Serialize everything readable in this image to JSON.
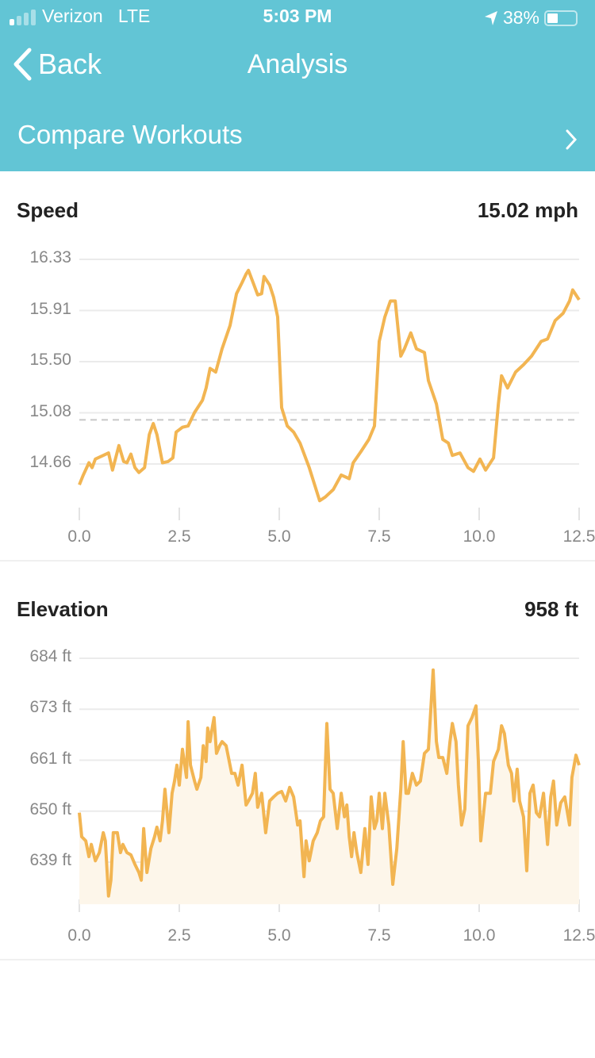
{
  "status_bar": {
    "carrier": "Verizon",
    "network": "LTE",
    "time": "5:03 PM",
    "battery": "38%",
    "battery_level": 0.38,
    "signal_bars": 1
  },
  "nav": {
    "back_label": "Back",
    "title": "Analysis"
  },
  "compare": {
    "label": "Compare Workouts"
  },
  "colors": {
    "header": "#62c5d5",
    "line": "#f2b552",
    "fill": "#fdf6ea"
  },
  "chart_data": [
    {
      "type": "line",
      "title": "Speed",
      "value": "15.02 mph",
      "average": 15.02,
      "yticks": [
        "16.33",
        "15.91",
        "15.50",
        "15.08",
        "14.66"
      ],
      "xticks": [
        "0.0",
        "2.5",
        "5.0",
        "7.5",
        "10.0",
        "12.5"
      ],
      "xlim": [
        0,
        12.5
      ],
      "ylim": [
        14.3,
        16.33
      ],
      "x": [
        0,
        0.1,
        0.24,
        0.32,
        0.4,
        0.6,
        0.73,
        0.83,
        0.99,
        1.11,
        1.19,
        1.29,
        1.39,
        1.49,
        1.63,
        1.75,
        1.85,
        1.94,
        2.08,
        2.22,
        2.34,
        2.42,
        2.58,
        2.72,
        2.88,
        3.08,
        3.17,
        3.27,
        3.41,
        3.57,
        3.77,
        3.93,
        4.07,
        4.17,
        4.23,
        4.37,
        4.46,
        4.56,
        4.62,
        4.76,
        4.86,
        4.96,
        5.06,
        5.2,
        5.36,
        5.52,
        5.75,
        6.01,
        6.15,
        6.35,
        6.55,
        6.75,
        6.85,
        7.04,
        7.24,
        7.38,
        7.5,
        7.64,
        7.78,
        7.9,
        8.04,
        8.13,
        8.29,
        8.43,
        8.63,
        8.73,
        8.93,
        9.09,
        9.23,
        9.33,
        9.52,
        9.72,
        9.86,
        10.02,
        10.16,
        10.36,
        10.48,
        10.56,
        10.71,
        10.91,
        11.11,
        11.31,
        11.55,
        11.71,
        11.9,
        12.1,
        12.26,
        12.34,
        12.5
      ],
      "y": [
        14.49,
        14.57,
        14.67,
        14.63,
        14.7,
        14.73,
        14.75,
        14.61,
        14.81,
        14.68,
        14.67,
        14.74,
        14.63,
        14.59,
        14.63,
        14.9,
        14.99,
        14.9,
        14.67,
        14.68,
        14.71,
        14.92,
        14.96,
        14.97,
        15.08,
        15.18,
        15.28,
        15.44,
        15.41,
        15.6,
        15.79,
        16.05,
        16.14,
        16.21,
        16.24,
        16.12,
        16.04,
        16.05,
        16.19,
        16.12,
        16.02,
        15.86,
        15.12,
        14.97,
        14.92,
        14.83,
        14.63,
        14.36,
        14.39,
        14.45,
        14.57,
        14.54,
        14.67,
        14.76,
        14.86,
        14.97,
        15.66,
        15.86,
        15.99,
        15.99,
        15.54,
        15.6,
        15.73,
        15.6,
        15.57,
        15.34,
        15.15,
        14.86,
        14.83,
        14.73,
        14.75,
        14.63,
        14.6,
        14.7,
        14.61,
        14.71,
        15.15,
        15.38,
        15.28,
        15.41,
        15.47,
        15.54,
        15.66,
        15.68,
        15.83,
        15.89,
        15.99,
        16.08,
        16.0
      ]
    },
    {
      "type": "area",
      "title": "Elevation",
      "value": "958 ft",
      "yticks": [
        "684 ft",
        "673 ft",
        "661 ft",
        "650 ft",
        "639 ft"
      ],
      "xticks": [
        "0.0",
        "2.5",
        "5.0",
        "7.5",
        "10.0",
        "12.5"
      ],
      "xlim": [
        0,
        12.5
      ],
      "ylim": [
        629.7,
        684
      ],
      "x": [
        0,
        0.06,
        0.16,
        0.24,
        0.3,
        0.4,
        0.5,
        0.6,
        0.65,
        0.73,
        0.79,
        0.85,
        0.95,
        1.03,
        1.09,
        1.19,
        1.29,
        1.39,
        1.49,
        1.55,
        1.61,
        1.69,
        1.79,
        1.88,
        1.94,
        2.02,
        2.08,
        2.14,
        2.24,
        2.32,
        2.38,
        2.44,
        2.5,
        2.58,
        2.68,
        2.72,
        2.78,
        2.88,
        2.94,
        3.04,
        3.1,
        3.17,
        3.21,
        3.27,
        3.31,
        3.37,
        3.43,
        3.51,
        3.57,
        3.67,
        3.73,
        3.81,
        3.89,
        3.97,
        4.07,
        4.17,
        4.23,
        4.33,
        4.4,
        4.46,
        4.56,
        4.66,
        4.76,
        4.86,
        4.96,
        5.06,
        5.16,
        5.26,
        5.36,
        5.46,
        5.52,
        5.62,
        5.67,
        5.75,
        5.85,
        5.95,
        6.03,
        6.11,
        6.19,
        6.27,
        6.35,
        6.45,
        6.55,
        6.63,
        6.69,
        6.75,
        6.81,
        6.87,
        6.94,
        7.04,
        7.14,
        7.22,
        7.3,
        7.38,
        7.44,
        7.5,
        7.58,
        7.64,
        7.74,
        7.84,
        7.94,
        8.04,
        8.1,
        8.17,
        8.23,
        8.33,
        8.43,
        8.53,
        8.63,
        8.73,
        8.79,
        8.85,
        8.93,
        8.99,
        9.09,
        9.19,
        9.27,
        9.33,
        9.42,
        9.48,
        9.56,
        9.64,
        9.72,
        9.82,
        9.92,
        9.98,
        10.04,
        10.16,
        10.28,
        10.36,
        10.48,
        10.56,
        10.63,
        10.73,
        10.81,
        10.87,
        10.95,
        11.01,
        11.11,
        11.19,
        11.27,
        11.35,
        11.43,
        11.51,
        11.61,
        11.71,
        11.79,
        11.86,
        11.94,
        12.04,
        12.14,
        12.26,
        12.32,
        12.42,
        12.5
      ],
      "y": [
        649.9,
        644.6,
        643.7,
        640.2,
        642.9,
        639.3,
        641.1,
        645.5,
        643.7,
        631.5,
        635.0,
        645.5,
        645.5,
        641.1,
        642.9,
        641.1,
        640.6,
        638.5,
        636.7,
        635.0,
        646.4,
        636.7,
        642.0,
        644.6,
        646.7,
        643.7,
        648.1,
        655.1,
        645.5,
        654.2,
        656.9,
        660.4,
        656.0,
        663.9,
        657.7,
        670.0,
        660.4,
        656.9,
        655.1,
        657.7,
        664.7,
        661.2,
        668.6,
        665.6,
        667.9,
        670.9,
        663.0,
        664.7,
        665.6,
        664.7,
        662.1,
        658.6,
        658.6,
        656.0,
        660.4,
        651.6,
        652.5,
        654.2,
        658.6,
        651.1,
        654.2,
        645.5,
        652.5,
        653.4,
        654.2,
        654.6,
        652.5,
        655.5,
        653.4,
        647.2,
        648.1,
        635.8,
        643.7,
        639.3,
        643.7,
        645.5,
        648.1,
        649.0,
        669.6,
        655.1,
        654.2,
        646.4,
        654.2,
        649.0,
        651.6,
        644.6,
        640.2,
        645.5,
        641.1,
        636.7,
        646.4,
        638.5,
        653.4,
        646.4,
        648.1,
        654.2,
        646.4,
        654.2,
        647.2,
        634.1,
        642.0,
        655.1,
        665.6,
        654.2,
        654.2,
        658.6,
        656.0,
        656.9,
        663.0,
        663.9,
        672.6,
        681.4,
        665.6,
        662.1,
        662.1,
        658.6,
        665.6,
        669.6,
        665.6,
        656.0,
        647.2,
        650.7,
        669.1,
        670.9,
        673.5,
        661.2,
        643.7,
        654.2,
        654.2,
        661.2,
        663.9,
        669.1,
        667.4,
        660.4,
        658.6,
        652.5,
        659.5,
        652.5,
        649.0,
        637.1,
        654.2,
        656.0,
        649.9,
        649.0,
        654.2,
        642.9,
        653.4,
        656.9,
        647.2,
        652.1,
        653.4,
        647.2,
        657.7,
        662.6,
        660.4
      ]
    }
  ]
}
